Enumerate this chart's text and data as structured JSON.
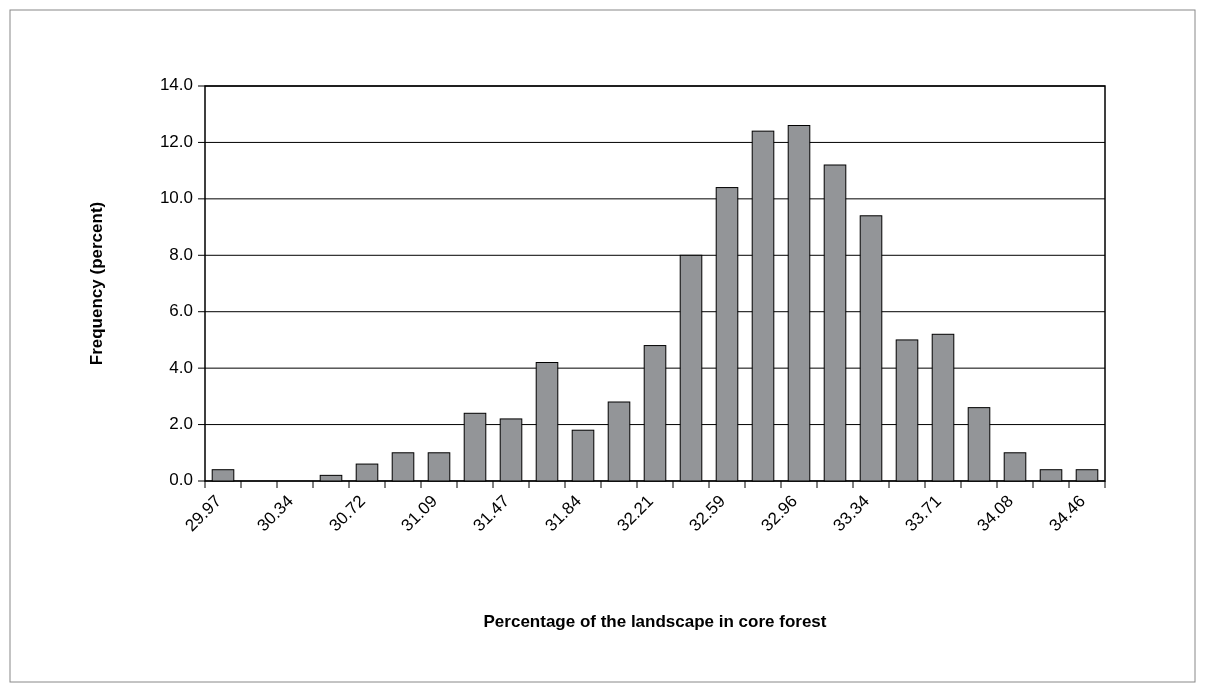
{
  "chart_data": {
    "type": "bar",
    "xlabel": "Percentage of the landscape in core forest",
    "ylabel": "Frequency (percent)",
    "categories": [
      "29.97",
      null,
      "30.34",
      null,
      "30.72",
      null,
      "31.09",
      null,
      "31.47",
      null,
      "31.84",
      null,
      "32.21",
      null,
      "32.59",
      null,
      "32.96",
      null,
      "33.34",
      null,
      "33.71",
      null,
      "34.08",
      null,
      "34.46"
    ],
    "values": [
      0.4,
      0,
      0,
      0.2,
      0.6,
      1.0,
      1.0,
      2.4,
      2.2,
      4.2,
      1.8,
      2.8,
      4.8,
      8.0,
      10.4,
      12.4,
      12.6,
      11.2,
      9.4,
      5.0,
      5.2,
      2.6,
      1.0,
      0.4,
      0.4
    ],
    "color": "#939598",
    "ylim": [
      0,
      14
    ],
    "yticks": [
      {
        "value": 0,
        "label": "0.0"
      },
      {
        "value": 2,
        "label": "2.0"
      },
      {
        "value": 4,
        "label": "4.0"
      },
      {
        "value": 6,
        "label": "6.0"
      },
      {
        "value": 8,
        "label": "8.0"
      },
      {
        "value": 10,
        "label": "10.0"
      },
      {
        "value": 12,
        "label": "12.0"
      },
      {
        "value": 14,
        "label": "14.0"
      }
    ],
    "grid": "y"
  }
}
